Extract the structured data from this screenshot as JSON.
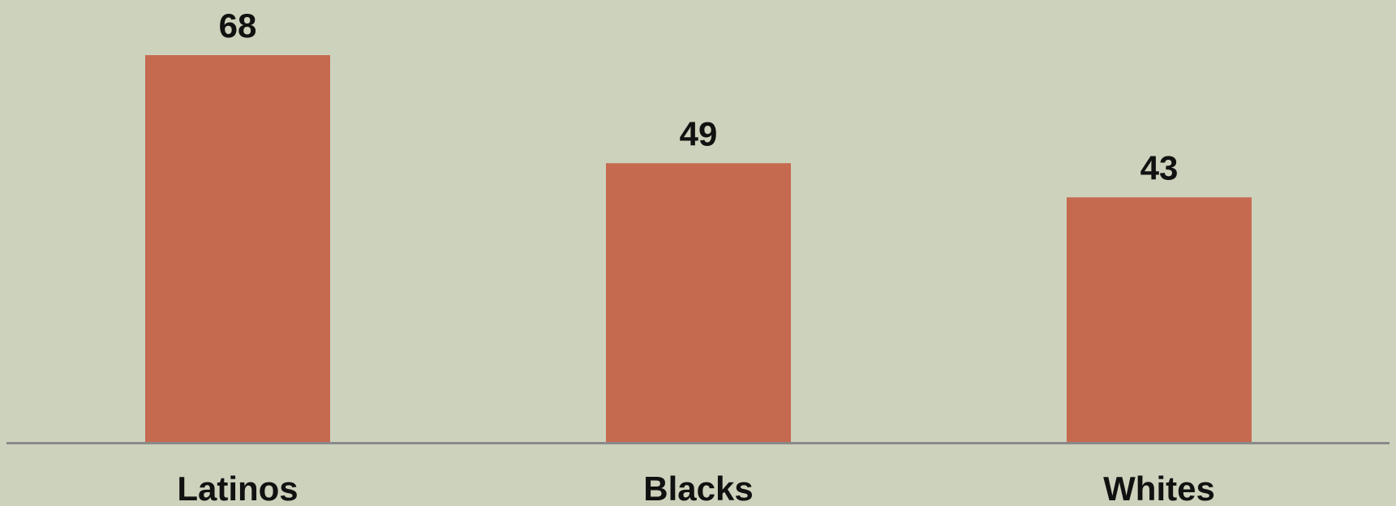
{
  "chart_data": {
    "type": "bar",
    "categories": [
      "Latinos",
      "Blacks",
      "Whites"
    ],
    "values": [
      68,
      49,
      43
    ],
    "data_labels": [
      "68",
      "49",
      "43"
    ],
    "title": "",
    "xlabel": "",
    "ylabel": "",
    "ylim": [
      0,
      68
    ],
    "grid": false,
    "legend": "none",
    "colors": {
      "bar": "#c5694f",
      "background": "#cdd2bc",
      "axis": "#8a8a8a",
      "text": "#111111"
    }
  }
}
